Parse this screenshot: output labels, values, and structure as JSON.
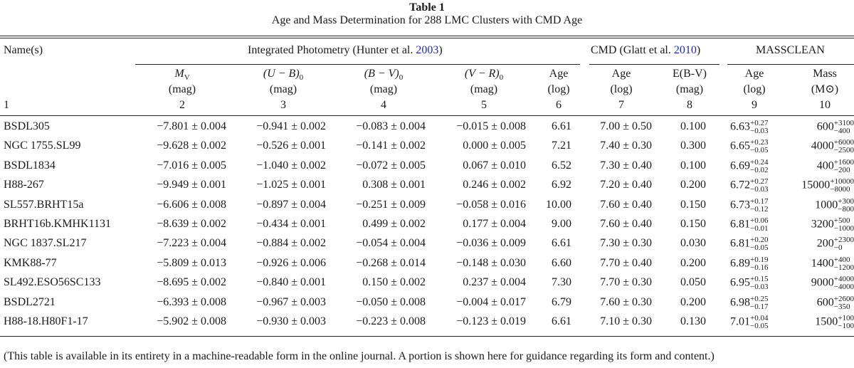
{
  "table": {
    "title": "Table 1",
    "caption": "Age and Mass Determination for 288 LMC Clusters with CMD Age",
    "groups": {
      "name": "Name(s)",
      "photometry_text": "Integrated Photometry (Hunter et al. ",
      "photometry_year": "2003",
      "photometry_close": ")",
      "cmd_text": "CMD (Glatt et al. ",
      "cmd_year": "2010",
      "cmd_close": ")",
      "massclean": "MASSCLEAN"
    },
    "columns": [
      {
        "label": "M",
        "sub": "V",
        "unit": "(mag)",
        "num": "2"
      },
      {
        "label": "(U − B)",
        "sub": "0",
        "unit": "(mag)",
        "num": "3"
      },
      {
        "label": "(B − V)",
        "sub": "0",
        "unit": "(mag)",
        "num": "4"
      },
      {
        "label": "(V − R)",
        "sub": "0",
        "unit": "(mag)",
        "num": "5"
      },
      {
        "label": "Age",
        "sub": "",
        "unit": "(log)",
        "num": "6"
      },
      {
        "label": "Age",
        "sub": "",
        "unit": "(log)",
        "num": "7"
      },
      {
        "label": "E(B-V)",
        "sub": "",
        "unit": "(mag)",
        "num": "8"
      },
      {
        "label": "Age",
        "sub": "",
        "unit": "(log)",
        "num": "9"
      },
      {
        "label": "Mass",
        "sub": "",
        "unit": "(M⊙)",
        "num": "10"
      }
    ],
    "name_col_num": "1",
    "rows": [
      {
        "name": "BSDL305",
        "mv": "−7.801 ± 0.004",
        "ub": "−0.941 ± 0.002",
        "bv": "−0.083 ± 0.004",
        "vr": "−0.015 ± 0.008",
        "age": "6.61",
        "cmd_age": "7.00 ± 0.50",
        "ebv": "0.100",
        "mc_age": "6.63",
        "mc_age_up": "+0.27",
        "mc_age_lo": "−0.03",
        "mass": "600",
        "mass_up": "+3100",
        "mass_lo": "−400"
      },
      {
        "name": "NGC 1755.SL99",
        "mv": "−9.628 ± 0.002",
        "ub": "−0.526 ± 0.001",
        "bv": "−0.141 ± 0.002",
        "vr": "0.000 ± 0.005",
        "age": "7.21",
        "cmd_age": "7.40 ± 0.30",
        "ebv": "0.300",
        "mc_age": "6.65",
        "mc_age_up": "+0.23",
        "mc_age_lo": "−0.05",
        "mass": "4000",
        "mass_up": "+6000",
        "mass_lo": "−2500"
      },
      {
        "name": "BSDL1834",
        "mv": "−7.016 ± 0.005",
        "ub": "−1.040 ± 0.002",
        "bv": "−0.072 ± 0.005",
        "vr": "0.067 ± 0.010",
        "age": "6.52",
        "cmd_age": "7.30 ± 0.40",
        "ebv": "0.100",
        "mc_age": "6.69",
        "mc_age_up": "+0.24",
        "mc_age_lo": "−0.02",
        "mass": "400",
        "mass_up": "+1600",
        "mass_lo": "−200"
      },
      {
        "name": "H88-267",
        "mv": "−9.949 ± 0.001",
        "ub": "−1.025 ± 0.001",
        "bv": "0.308 ± 0.001",
        "vr": "0.246 ± 0.002",
        "age": "6.92",
        "cmd_age": "7.20 ± 0.40",
        "ebv": "0.200",
        "mc_age": "6.72",
        "mc_age_up": "+0.27",
        "mc_age_lo": "−0.03",
        "mass": "15000",
        "mass_up": "+10000",
        "mass_lo": "−8000"
      },
      {
        "name": "SL557.BRHT15a",
        "mv": "−6.606 ± 0.008",
        "ub": "−0.897 ± 0.004",
        "bv": "−0.251 ± 0.009",
        "vr": "−0.058 ± 0.016",
        "age": "10.00",
        "cmd_age": "7.60 ± 0.40",
        "ebv": "0.150",
        "mc_age": "6.73",
        "mc_age_up": "+0.17",
        "mc_age_lo": "−0.12",
        "mass": "1000",
        "mass_up": "+300",
        "mass_lo": "−800"
      },
      {
        "name": "BRHT16b.KMHK1131",
        "mv": "−8.639 ± 0.002",
        "ub": "−0.434 ± 0.001",
        "bv": "0.499 ± 0.002",
        "vr": "0.177 ± 0.004",
        "age": "9.00",
        "cmd_age": "7.60 ± 0.40",
        "ebv": "0.150",
        "mc_age": "6.81",
        "mc_age_up": "+0.06",
        "mc_age_lo": "−0.01",
        "mass": "3200",
        "mass_up": "+500",
        "mass_lo": "−1000"
      },
      {
        "name": "NGC 1837.SL217",
        "mv": "−7.223 ± 0.004",
        "ub": "−0.884 ± 0.002",
        "bv": "−0.054 ± 0.004",
        "vr": "−0.036 ± 0.009",
        "age": "6.61",
        "cmd_age": "7.30 ± 0.30",
        "ebv": "0.030",
        "mc_age": "6.81",
        "mc_age_up": "+0.20",
        "mc_age_lo": "−0.05",
        "mass": "200",
        "mass_up": "+2300",
        "mass_lo": "−0"
      },
      {
        "name": "KMK88-77",
        "mv": "−5.809 ± 0.013",
        "ub": "−0.926 ± 0.006",
        "bv": "−0.268 ± 0.014",
        "vr": "−0.148 ± 0.030",
        "age": "6.60",
        "cmd_age": "7.70 ± 0.40",
        "ebv": "0.200",
        "mc_age": "6.89",
        "mc_age_up": "+0.19",
        "mc_age_lo": "−0.16",
        "mass": "1400",
        "mass_up": "+400",
        "mass_lo": "−1200"
      },
      {
        "name": "SL492.ESO56SC133",
        "mv": "−8.695 ± 0.002",
        "ub": "−0.840 ± 0.001",
        "bv": "0.150 ± 0.002",
        "vr": "0.237 ± 0.004",
        "age": "7.30",
        "cmd_age": "7.70 ± 0.30",
        "ebv": "0.050",
        "mc_age": "6.95",
        "mc_age_up": "+0.15",
        "mc_age_lo": "−0.03",
        "mass": "9000",
        "mass_up": "+4000",
        "mass_lo": "−4000"
      },
      {
        "name": "BSDL2721",
        "mv": "−6.393 ± 0.008",
        "ub": "−0.967 ± 0.003",
        "bv": "−0.050 ± 0.008",
        "vr": "−0.004 ± 0.017",
        "age": "6.79",
        "cmd_age": "7.60 ± 0.30",
        "ebv": "0.200",
        "mc_age": "6.98",
        "mc_age_up": "+0.25",
        "mc_age_lo": "−0.17",
        "mass": "600",
        "mass_up": "+2600",
        "mass_lo": "−350"
      },
      {
        "name": "H88-18.H80F1-17",
        "mv": "−5.902 ± 0.008",
        "ub": "−0.930 ± 0.003",
        "bv": "−0.223 ± 0.008",
        "vr": "−0.123 ± 0.019",
        "age": "6.61",
        "cmd_age": "7.10 ± 0.30",
        "ebv": "0.130",
        "mc_age": "7.01",
        "mc_age_up": "+0.04",
        "mc_age_lo": "−0.05",
        "mass": "1500",
        "mass_up": "+100",
        "mass_lo": "−100"
      }
    ],
    "footnote": "(This table is available in its entirety in a machine-readable form in the online journal. A portion is shown here for guidance regarding its form and content.)",
    "link_color": "#1f2e9e"
  }
}
